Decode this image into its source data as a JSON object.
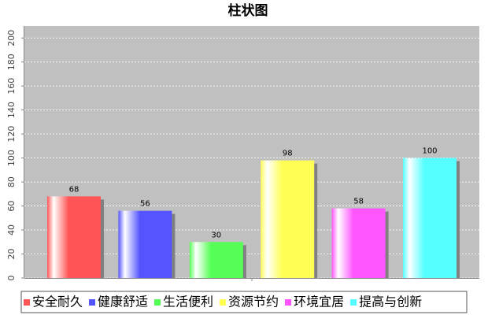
{
  "chart_data": {
    "type": "bar",
    "title": "柱状图",
    "categories": [
      null
    ],
    "series": [
      {
        "name": "安全耐久",
        "color": "#ff5555",
        "values": [
          68
        ]
      },
      {
        "name": "健康舒适",
        "color": "#5555ff",
        "values": [
          56
        ]
      },
      {
        "name": "生活便利",
        "color": "#55ff55",
        "values": [
          30
        ]
      },
      {
        "name": "资源节约",
        "color": "#ffff55",
        "values": [
          98
        ]
      },
      {
        "name": "环境宜居",
        "color": "#ff55ff",
        "values": [
          58
        ]
      },
      {
        "name": "提高与创新",
        "color": "#55ffff",
        "values": [
          100
        ]
      }
    ],
    "ylim": [
      0,
      210
    ],
    "yticks": [
      0,
      20,
      40,
      60,
      80,
      100,
      120,
      140,
      160,
      180,
      200
    ],
    "grid": true,
    "legend": "bottom"
  }
}
